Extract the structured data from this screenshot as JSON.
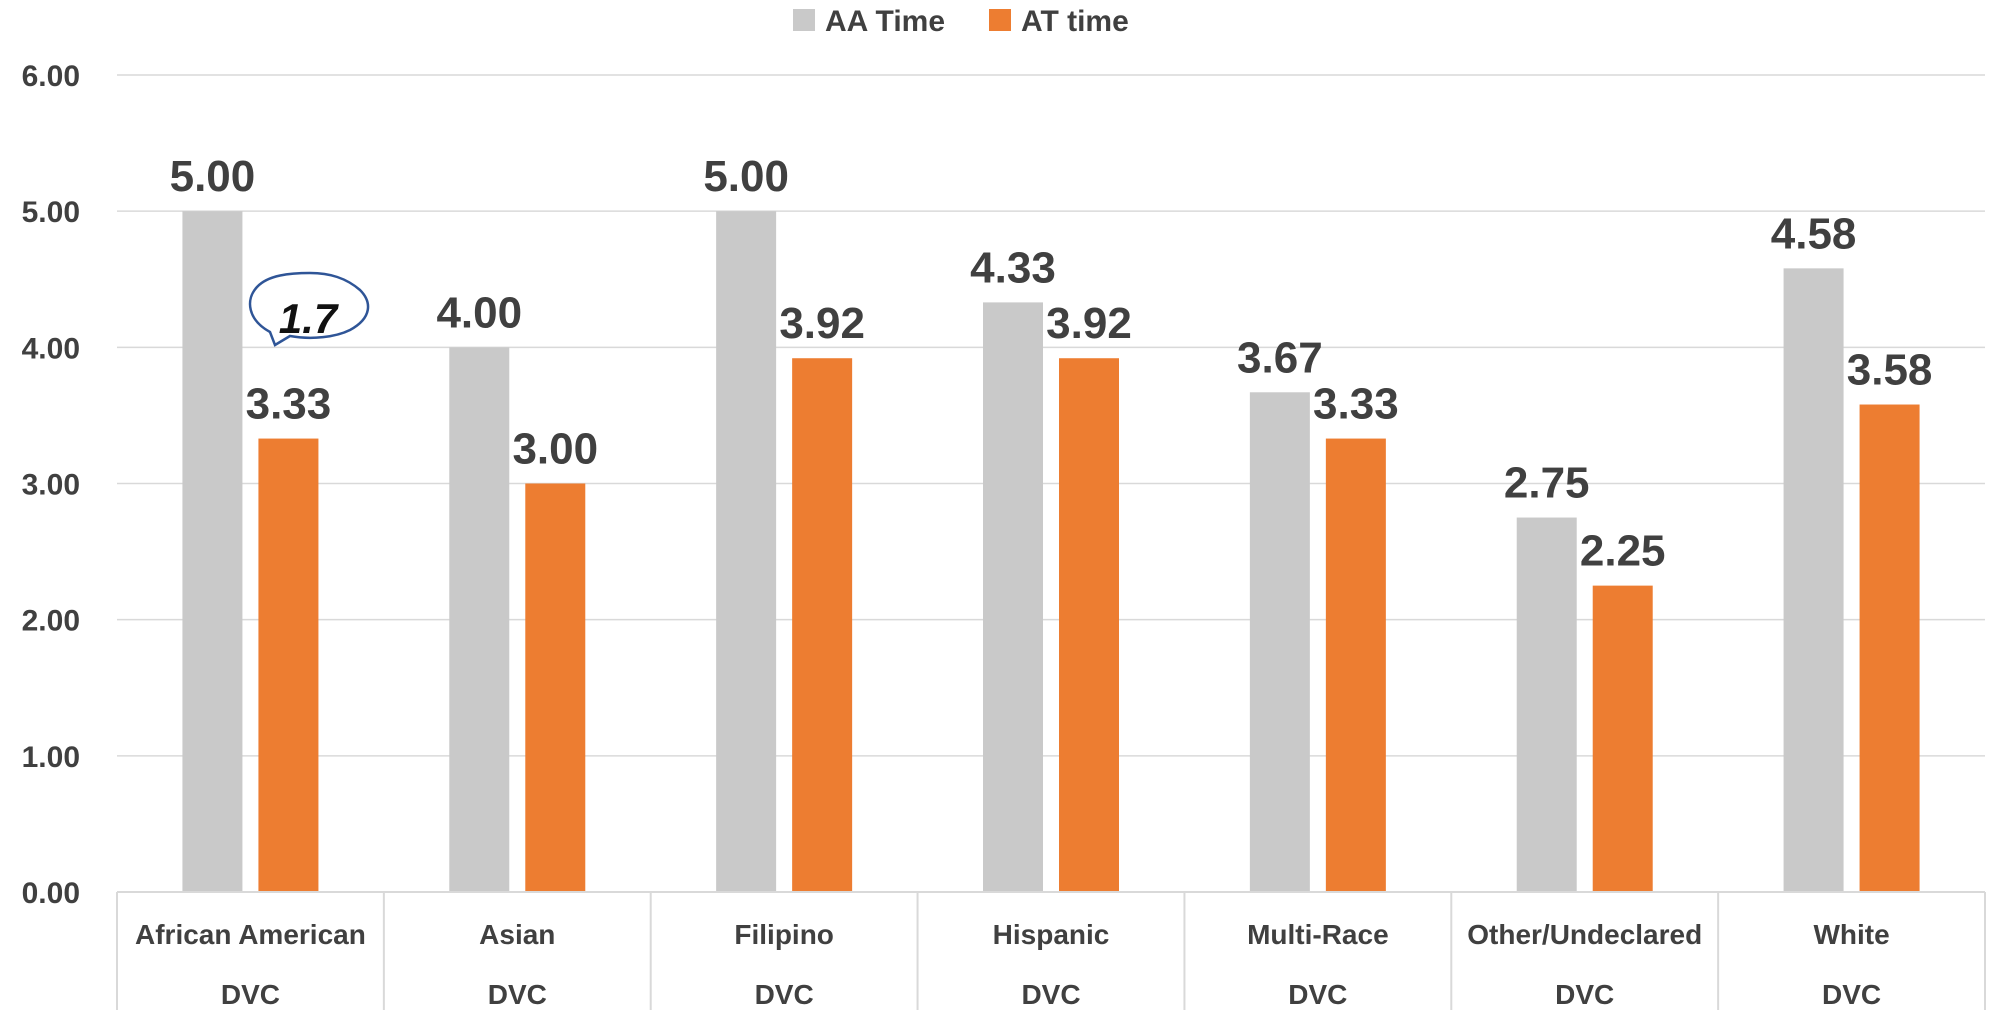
{
  "chart_data": {
    "type": "bar",
    "categories": [
      "African American",
      "Asian",
      "Filipino",
      "Hispanic",
      "Multi-Race",
      "Other/Undeclared",
      "White"
    ],
    "group_label": "DVC",
    "series": [
      {
        "name": "AA Time",
        "color": "#c9c9c9",
        "values": [
          5.0,
          4.0,
          5.0,
          4.33,
          3.67,
          2.75,
          4.58
        ]
      },
      {
        "name": "AT time",
        "color": "#ed7d31",
        "values": [
          3.33,
          3.0,
          3.92,
          3.92,
          3.33,
          2.25,
          3.58
        ]
      }
    ],
    "ylim": [
      0,
      6
    ],
    "yticks": [
      "0.00",
      "1.00",
      "2.00",
      "3.00",
      "4.00",
      "5.00",
      "6.00"
    ],
    "grid": true,
    "legend_position": "top-center",
    "annotation": {
      "text": "1.7",
      "category": "African American"
    }
  }
}
